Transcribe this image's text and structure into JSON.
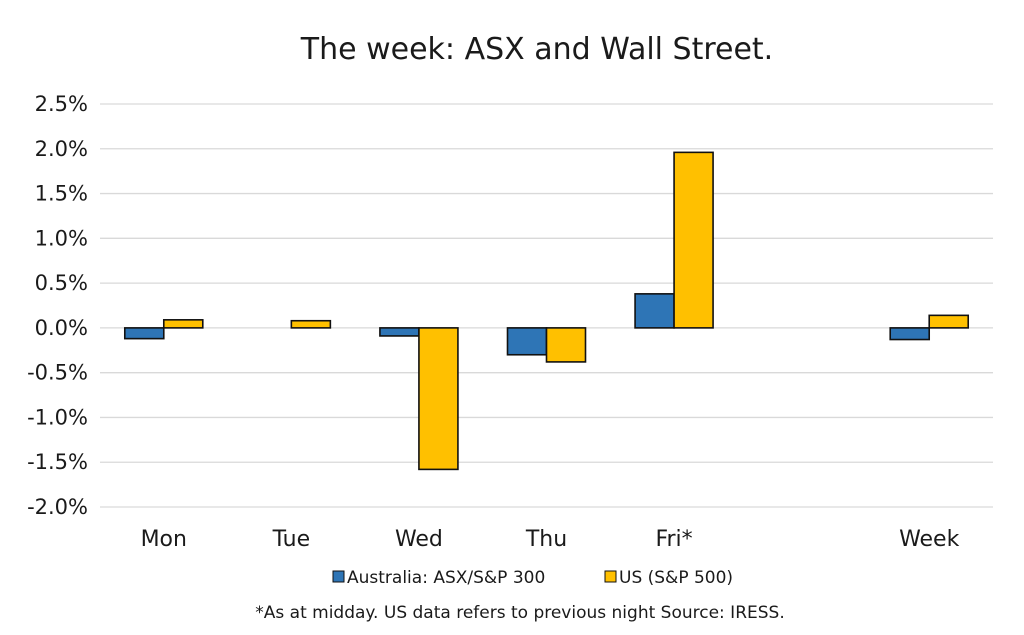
{
  "chart_data": {
    "type": "bar",
    "title": "The week:  ASX and Wall Street.",
    "categories": [
      "Mon",
      "Tue",
      "Wed",
      "Thu",
      "Fri*",
      "",
      "Week"
    ],
    "series": [
      {
        "name": "Australia: ASX/S&P 300",
        "color": "#2e75b6",
        "values": [
          -0.12,
          null,
          -0.09,
          -0.3,
          0.38,
          null,
          -0.13
        ]
      },
      {
        "name": "US (S&P 500)",
        "color": "#ffc000",
        "values": [
          0.09,
          0.08,
          -1.58,
          -0.38,
          1.96,
          null,
          0.14
        ]
      }
    ],
    "yticks": [
      "2.5%",
      "2.0%",
      "1.5%",
      "1.0%",
      "0.5%",
      "0.0%",
      "-0.5%",
      "-1.0%",
      "-1.5%",
      "-2.0%"
    ],
    "ylim": [
      -2.0,
      2.5
    ],
    "ytick_step": 0.5,
    "grid": true,
    "legend_position": "bottom",
    "footnote": "*As at midday. US data refers to previous night  Source:  IRESS."
  }
}
